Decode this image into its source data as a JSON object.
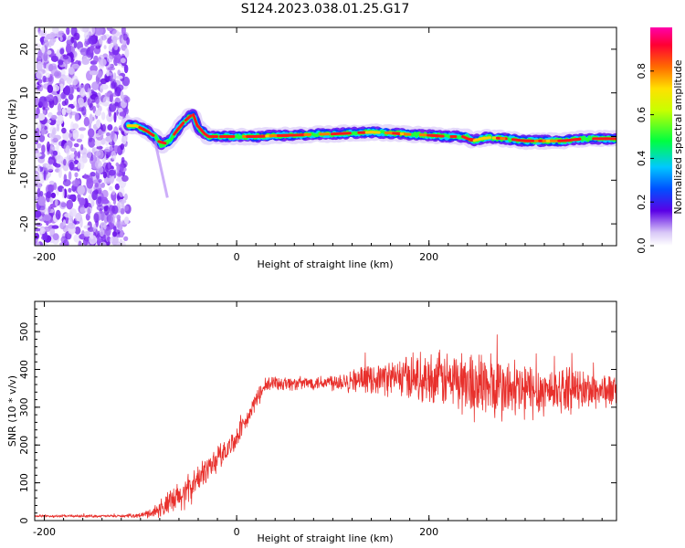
{
  "title": "S124.2023.038.01.25.G17",
  "chart_data": [
    {
      "type": "heatmap",
      "xlabel": "Height of straight line (km)",
      "ylabel": "Frequency (Hz)",
      "xlim": [
        -210,
        395
      ],
      "ylim": [
        -25,
        25
      ],
      "x_ticks": [
        -200,
        0,
        200
      ],
      "y_ticks": [
        20,
        10,
        0,
        -10,
        -20
      ],
      "grid": false,
      "noise_region_x": [
        -210,
        -113
      ],
      "ridge": {
        "x": [
          -113,
          -105,
          -95,
          -85,
          -78,
          -70,
          -60,
          -50,
          -45,
          -40,
          -30,
          -20,
          -10,
          0,
          20,
          40,
          60,
          80,
          100,
          120,
          140,
          160,
          180,
          200,
          220,
          240,
          245,
          260,
          280,
          300,
          320,
          340,
          360,
          380,
          395
        ],
        "y": [
          2.5,
          2.5,
          1.5,
          0,
          -2,
          -1,
          2,
          4.5,
          5,
          2,
          0,
          0,
          0,
          0,
          0,
          0.2,
          0.3,
          0.5,
          0.6,
          0.8,
          1,
          0.8,
          0.5,
          0.3,
          0,
          0,
          -1,
          -0.2,
          -0.5,
          -1,
          -1,
          -1,
          -0.5,
          -0.5,
          -0.5
        ]
      },
      "colorbar": {
        "label": "Normalized spectral amplitude",
        "range": [
          0,
          1
        ],
        "ticks": [
          "0.0",
          "0.2",
          "0.4",
          "0.6",
          "0.8"
        ]
      }
    },
    {
      "type": "line",
      "xlabel": "Height of straight line (km)",
      "ylabel": "SNR (10 * v/v)",
      "xlim": [
        -210,
        395
      ],
      "ylim": [
        0,
        580
      ],
      "x_ticks": [
        -200,
        0,
        200
      ],
      "y_ticks": [
        0,
        100,
        200,
        300,
        400,
        500
      ],
      "grid": false,
      "series": [
        {
          "color": "#e8302c",
          "x": [
            -210,
            -180,
            -150,
            -120,
            -100,
            -90,
            -80,
            -70,
            -60,
            -50,
            -40,
            -30,
            -20,
            -10,
            0,
            10,
            20,
            30,
            40,
            60,
            80,
            100,
            120,
            140,
            160,
            180,
            200,
            220,
            240,
            260,
            280,
            300,
            320,
            340,
            360,
            380,
            395
          ],
          "y": [
            12,
            12,
            12,
            12,
            14,
            20,
            30,
            45,
            60,
            80,
            110,
            140,
            165,
            190,
            220,
            260,
            320,
            355,
            365,
            362,
            365,
            368,
            372,
            375,
            378,
            380,
            378,
            372,
            365,
            355,
            345,
            342,
            345,
            348,
            345,
            345,
            342
          ],
          "jitter": [
            3,
            3,
            3,
            3,
            5,
            10,
            20,
            30,
            35,
            35,
            30,
            30,
            30,
            25,
            25,
            20,
            20,
            18,
            18,
            15,
            15,
            20,
            25,
            30,
            40,
            50,
            55,
            65,
            75,
            80,
            70,
            70,
            55,
            50,
            45,
            40,
            35
          ]
        }
      ]
    }
  ]
}
